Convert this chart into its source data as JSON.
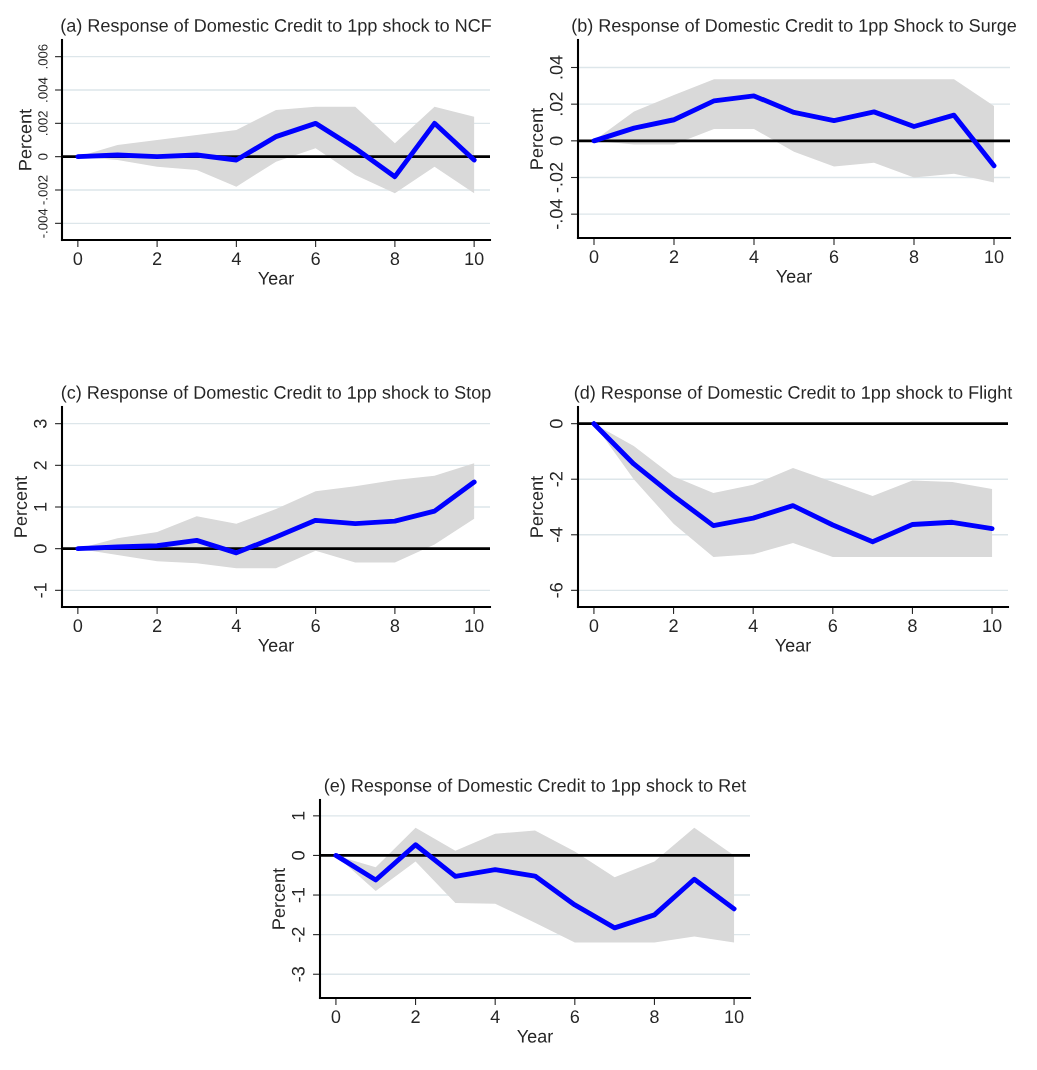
{
  "chart_data": [
    {
      "type": "line",
      "title": "(a) Response of Domestic Credit to 1pp shock to NCF",
      "xlabel": "Year",
      "ylabel": "Percent",
      "x": [
        0,
        1,
        2,
        3,
        4,
        5,
        6,
        7,
        8,
        9,
        10
      ],
      "xlim": [
        -0.4,
        10.4
      ],
      "xticks": [
        0,
        2,
        4,
        6,
        8,
        10
      ],
      "ylim": [
        -0.005,
        0.007
      ],
      "yticks": [
        {
          "value": -0.004,
          "label": "-.004"
        },
        {
          "value": -0.002,
          "label": "-.002"
        },
        0,
        {
          "value": 0.002,
          "label": ".002"
        },
        {
          "value": 0.004,
          "label": ".004"
        },
        {
          "value": 0.006,
          "label": ".006"
        }
      ],
      "grid": "y",
      "ref_lines": [
        {
          "axis": "y",
          "value": 0,
          "color": "#000000"
        }
      ],
      "series": [
        {
          "color": "#0000ff",
          "values": [
            0,
            0.0001,
            0,
            0.0001,
            -0.0002,
            0.0012,
            0.002,
            0.0005,
            -0.0012,
            0.002,
            -0.0002
          ],
          "lower": [
            0,
            -0.0002,
            -0.0006,
            -0.0008,
            -0.0018,
            -0.0003,
            0.0005,
            -0.0011,
            -0.0022,
            -0.0006,
            -0.0022
          ],
          "upper": [
            0,
            0.0007,
            0.001,
            0.0013,
            0.0016,
            0.0028,
            0.003,
            0.003,
            0.0008,
            0.003,
            0.0024
          ]
        }
      ]
    },
    {
      "type": "line",
      "title": "(b) Response of Domestic Credit to 1pp Shock to Surge",
      "xlabel": "Year",
      "ylabel": "Percent",
      "x": [
        0,
        1,
        2,
        3,
        4,
        5,
        6,
        7,
        8,
        9,
        10
      ],
      "xlim": [
        -0.4,
        10.4
      ],
      "xticks": [
        0,
        2,
        4,
        6,
        8,
        10
      ],
      "ylim": [
        -0.053,
        0.055
      ],
      "yticks": [
        {
          "value": -0.04,
          "label": "-.04"
        },
        {
          "value": -0.02,
          "label": "-.02"
        },
        0,
        {
          "value": 0.02,
          "label": ".02"
        },
        {
          "value": 0.04,
          "label": ".04"
        }
      ],
      "grid": "y",
      "ref_lines": [
        {
          "axis": "y",
          "value": 0,
          "color": "#000000"
        }
      ],
      "series": [
        {
          "color": "#0000ff",
          "values": [
            0,
            0.0069,
            0.0115,
            0.0218,
            0.0245,
            0.0155,
            0.011,
            0.0158,
            0.0078,
            0.014,
            -0.0136
          ],
          "lower": [
            0,
            -0.002,
            -0.002,
            0.0065,
            0.0065,
            -0.006,
            -0.014,
            -0.012,
            -0.02,
            -0.018,
            -0.0227
          ],
          "upper": [
            0,
            0.016,
            0.025,
            0.0336,
            0.0336,
            0.0336,
            0.0336,
            0.0336,
            0.0336,
            0.0336,
            0.019
          ]
        }
      ]
    },
    {
      "type": "line",
      "title": "(c) Response of Domestic Credit to 1pp shock to Stop",
      "xlabel": "Year",
      "ylabel": "Percent",
      "x": [
        0,
        1,
        2,
        3,
        4,
        5,
        6,
        7,
        8,
        9,
        10
      ],
      "xlim": [
        -0.4,
        10.4
      ],
      "xticks": [
        0,
        2,
        4,
        6,
        8,
        10
      ],
      "ylim": [
        -1.4,
        3.4
      ],
      "yticks": [
        -1,
        0,
        1,
        2,
        3
      ],
      "grid": "y",
      "ref_lines": [
        {
          "axis": "y",
          "value": 0,
          "color": "#000000"
        }
      ],
      "series": [
        {
          "color": "#0000ff",
          "values": [
            0,
            0.04,
            0.07,
            0.2,
            -0.1,
            0.28,
            0.68,
            0.6,
            0.66,
            0.9,
            1.6
          ],
          "lower": [
            0,
            -0.15,
            -0.3,
            -0.35,
            -0.47,
            -0.47,
            -0.05,
            -0.33,
            -0.33,
            0.1,
            0.72
          ],
          "upper": [
            0,
            0.25,
            0.4,
            0.78,
            0.6,
            0.95,
            1.38,
            1.5,
            1.65,
            1.75,
            2.05
          ]
        }
      ]
    },
    {
      "type": "line",
      "title": "(d) Response of Domestic Credit to 1pp shock to Flight",
      "xlabel": "Year",
      "ylabel": "Percent",
      "x": [
        0,
        1,
        2,
        3,
        4,
        5,
        6,
        7,
        8,
        9,
        10
      ],
      "xlim": [
        -0.4,
        10.4
      ],
      "xticks": [
        0,
        2,
        4,
        6,
        8,
        10
      ],
      "ylim": [
        -6.6,
        0.6
      ],
      "yticks": [
        -6,
        -4,
        -2,
        0
      ],
      "grid": "y",
      "ref_lines": [
        {
          "axis": "y",
          "value": 0,
          "color": "#000000"
        }
      ],
      "series": [
        {
          "color": "#0000ff",
          "values": [
            0,
            -1.45,
            -2.6,
            -3.67,
            -3.4,
            -2.95,
            -3.65,
            -4.25,
            -3.63,
            -3.55,
            -3.78
          ],
          "lower": [
            0,
            -2,
            -3.6,
            -4.8,
            -4.7,
            -4.3,
            -4.8,
            -4.8,
            -4.8,
            -4.8,
            -4.8
          ],
          "upper": [
            0,
            -0.8,
            -1.9,
            -2.5,
            -2.2,
            -1.6,
            -2.1,
            -2.6,
            -2.05,
            -2.1,
            -2.35
          ]
        }
      ]
    },
    {
      "type": "line",
      "title": "(e) Response of Domestic Credit to 1pp shock to Ret",
      "xlabel": "Year",
      "ylabel": "Percent",
      "x": [
        0,
        1,
        2,
        3,
        4,
        5,
        6,
        7,
        8,
        9,
        10
      ],
      "xlim": [
        -0.4,
        10.4
      ],
      "xticks": [
        0,
        2,
        4,
        6,
        8,
        10
      ],
      "ylim": [
        -3.6,
        1.4
      ],
      "yticks": [
        -3,
        -2,
        -1,
        0,
        1
      ],
      "grid": "y",
      "ref_lines": [
        {
          "axis": "y",
          "value": 0,
          "color": "#000000"
        }
      ],
      "series": [
        {
          "color": "#0000ff",
          "values": [
            0,
            -0.62,
            0.27,
            -0.53,
            -0.36,
            -0.52,
            -1.25,
            -1.83,
            -1.5,
            -0.6,
            -1.35
          ],
          "lower": [
            0,
            -0.9,
            -0.15,
            -1.2,
            -1.22,
            -1.7,
            -2.2,
            -2.2,
            -2.2,
            -2.05,
            -2.2
          ],
          "upper": [
            0,
            -0.3,
            0.7,
            0.12,
            0.55,
            0.63,
            0.1,
            -0.55,
            -0.15,
            0.7,
            0
          ]
        }
      ]
    }
  ]
}
